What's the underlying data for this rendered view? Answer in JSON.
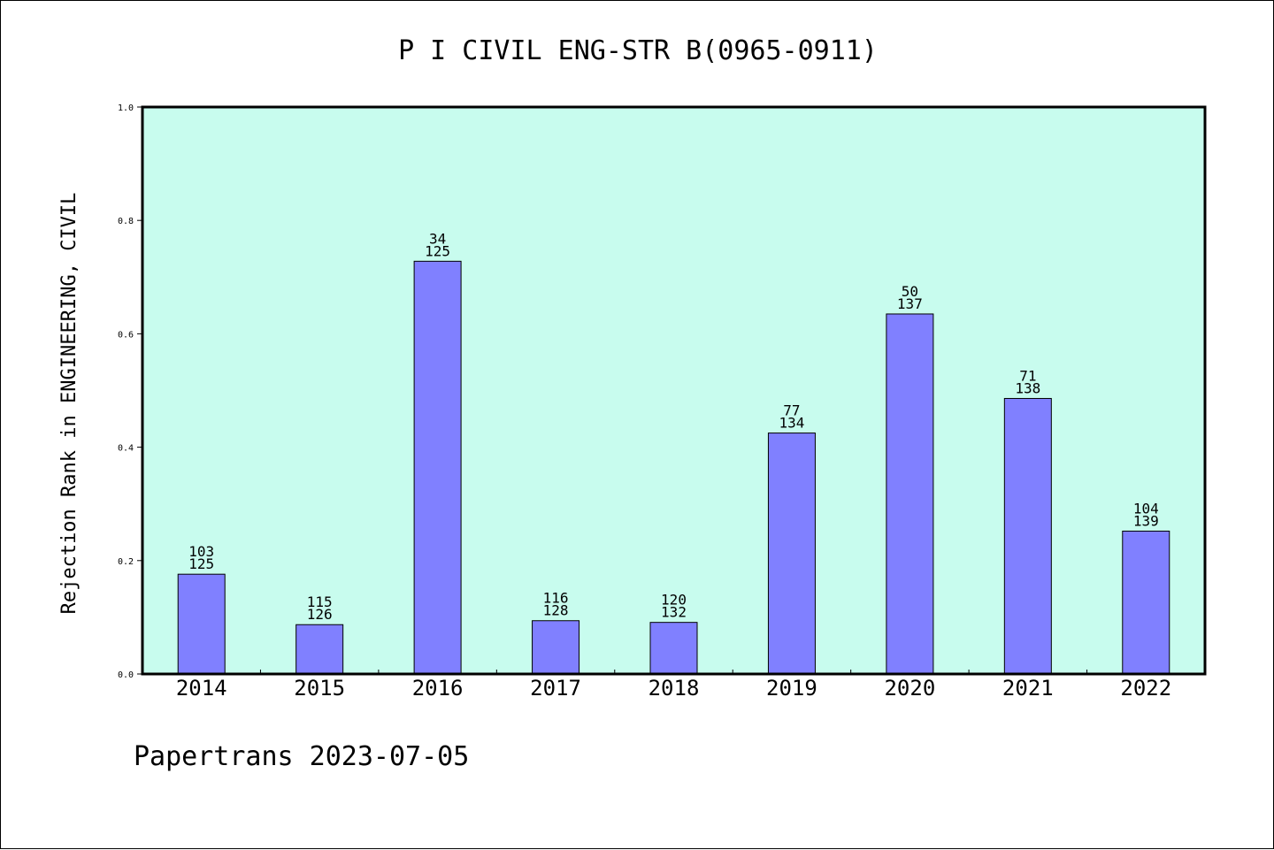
{
  "chart_data": {
    "type": "bar",
    "title": "P I CIVIL ENG-STR B(0965-0911)",
    "xlabel": "",
    "ylabel": "Rejection Rank in ENGINEERING, CIVIL",
    "categories": [
      "2014",
      "2015",
      "2016",
      "2017",
      "2018",
      "2019",
      "2020",
      "2021",
      "2022"
    ],
    "values": [
      0.176,
      0.087,
      0.728,
      0.094,
      0.091,
      0.425,
      0.635,
      0.486,
      0.252
    ],
    "bar_labels": [
      {
        "top": "103",
        "bottom": "125"
      },
      {
        "top": "115",
        "bottom": "126"
      },
      {
        "top": "34",
        "bottom": "125"
      },
      {
        "top": "116",
        "bottom": "128"
      },
      {
        "top": "120",
        "bottom": "132"
      },
      {
        "top": "77",
        "bottom": "134"
      },
      {
        "top": "50",
        "bottom": "137"
      },
      {
        "top": "71",
        "bottom": "138"
      },
      {
        "top": "104",
        "bottom": "139"
      }
    ],
    "ylim": [
      0,
      1.0
    ],
    "yticks": [
      "0.0",
      "0.2",
      "0.4",
      "0.6",
      "0.8",
      "1.0"
    ],
    "grid": false,
    "colors": {
      "plot_background": "#c8fcee",
      "bar_fill": "#8080ff",
      "bar_stroke": "#000000",
      "axes": "#000000"
    }
  },
  "footer": "Papertrans 2023-07-05"
}
